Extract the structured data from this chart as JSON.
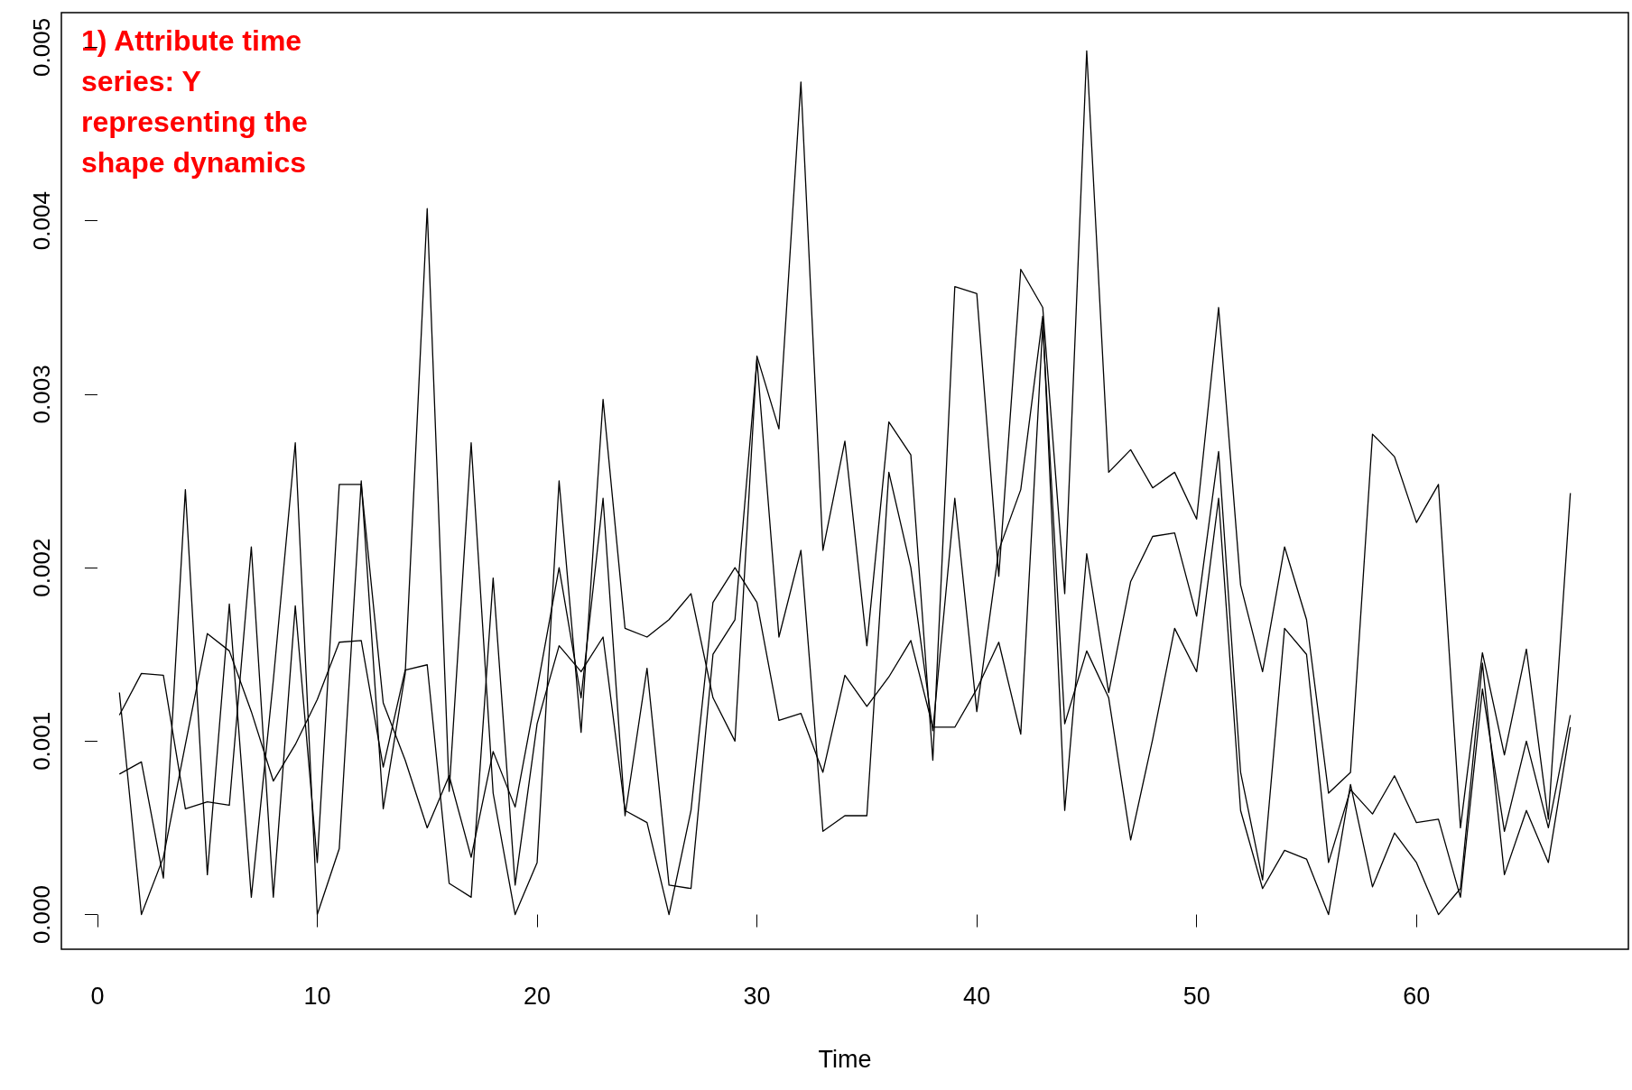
{
  "chart_data": {
    "type": "line",
    "xlabel": "Time",
    "annotations": [
      "1) Attribute time series: Y representing the shape dynamics"
    ],
    "x": [
      1,
      2,
      3,
      4,
      5,
      6,
      7,
      8,
      9,
      10,
      11,
      12,
      13,
      14,
      15,
      16,
      17,
      18,
      19,
      20,
      21,
      22,
      23,
      24,
      25,
      26,
      27,
      28,
      29,
      30,
      31,
      32,
      33,
      34,
      35,
      36,
      37,
      38,
      39,
      40,
      41,
      42,
      43,
      44,
      45,
      46,
      47,
      48,
      49,
      50,
      51,
      52,
      53,
      54,
      55,
      56,
      57,
      58,
      59,
      60,
      61,
      62,
      63,
      64,
      65,
      66,
      67
    ],
    "series": [
      {
        "color": "#000000",
        "values": [
          0.00081,
          0.00088,
          0.00021,
          0.00245,
          0.00023,
          0.00179,
          0.0001,
          0.00135,
          0.00272,
          0.0,
          0.00038,
          0.0025,
          0.00061,
          0.00139,
          0.00407,
          0.00071,
          0.00272,
          0.0007,
          0.0,
          0.0003,
          0.0025,
          0.00105,
          0.00297,
          0.00165,
          0.0016,
          0.0017,
          0.00185,
          0.00125,
          0.001,
          0.00322,
          0.0028,
          0.0048,
          0.0021,
          0.00273,
          0.00155,
          0.00284,
          0.00265,
          0.00089,
          0.00362,
          0.00358,
          0.00195,
          0.00372,
          0.0035,
          0.00185,
          0.00498,
          0.00255,
          0.00268,
          0.00246,
          0.00255,
          0.00228,
          0.0035,
          0.0019,
          0.0014,
          0.00212,
          0.0017,
          0.0007,
          0.00082,
          0.00277,
          0.00264,
          0.00226,
          0.00248,
          0.0005,
          0.00151,
          0.00092,
          0.00153,
          0.00055,
          0.00243
        ]
      },
      {
        "color": "#000000",
        "values": [
          0.00115,
          0.00139,
          0.00138,
          0.00061,
          0.00065,
          0.00063,
          0.00212,
          0.0001,
          0.00178,
          0.0003,
          0.00248,
          0.00248,
          0.00122,
          0.00089,
          0.0005,
          0.0008,
          0.00033,
          0.00094,
          0.00062,
          0.0013,
          0.002,
          0.00125,
          0.0024,
          0.00057,
          0.00142,
          0.00017,
          0.00015,
          0.0015,
          0.0017,
          0.0032,
          0.0016,
          0.0021,
          0.00048,
          0.00057,
          0.00057,
          0.00255,
          0.002,
          0.00106,
          0.0024,
          0.00117,
          0.0021,
          0.00245,
          0.00345,
          0.0006,
          0.00208,
          0.00128,
          0.00192,
          0.00218,
          0.0022,
          0.00172,
          0.00267,
          0.00082,
          0.0002,
          0.00165,
          0.0015,
          0.0003,
          0.00072,
          0.00058,
          0.0008,
          0.00053,
          0.00055,
          0.0001,
          0.0013,
          0.00048,
          0.001,
          0.0005,
          0.00115
        ]
      },
      {
        "color": "#000000",
        "values": [
          0.00128,
          0.0,
          0.00033,
          0.00098,
          0.00162,
          0.00152,
          0.00117,
          0.00077,
          0.00098,
          0.00124,
          0.00157,
          0.00158,
          0.00085,
          0.00141,
          0.00144,
          0.00018,
          0.0001,
          0.00194,
          0.00017,
          0.0011,
          0.00155,
          0.0014,
          0.0016,
          0.0006,
          0.00053,
          0.0,
          0.0006,
          0.0018,
          0.002,
          0.0018,
          0.00112,
          0.00116,
          0.00082,
          0.00138,
          0.0012,
          0.00137,
          0.00158,
          0.00108,
          0.00108,
          0.0013,
          0.00157,
          0.00104,
          0.0034,
          0.0011,
          0.00152,
          0.00125,
          0.00043,
          0.00101,
          0.00165,
          0.0014,
          0.0024,
          0.0006,
          0.00015,
          0.00037,
          0.00032,
          0.0,
          0.00075,
          0.00016,
          0.00047,
          0.0003,
          0.0,
          0.00015,
          0.00145,
          0.00023,
          0.0006,
          0.0003,
          0.00108
        ]
      }
    ],
    "xlim": [
      -1.64,
      69.64
    ],
    "xticks": [
      0,
      10,
      20,
      30,
      40,
      50,
      60
    ],
    "ylim": [
      -0.0002,
      0.0052
    ],
    "yticks": [
      {
        "value": 0,
        "label": "0.000"
      },
      {
        "value": 0.001,
        "label": "0.001"
      },
      {
        "value": 0.002,
        "label": "0.002"
      },
      {
        "value": 0.003,
        "label": "0.003"
      },
      {
        "value": 0.004,
        "label": "0.004"
      },
      {
        "value": 0.005,
        "label": "0.005"
      }
    ],
    "marker": "none",
    "grid": false
  }
}
